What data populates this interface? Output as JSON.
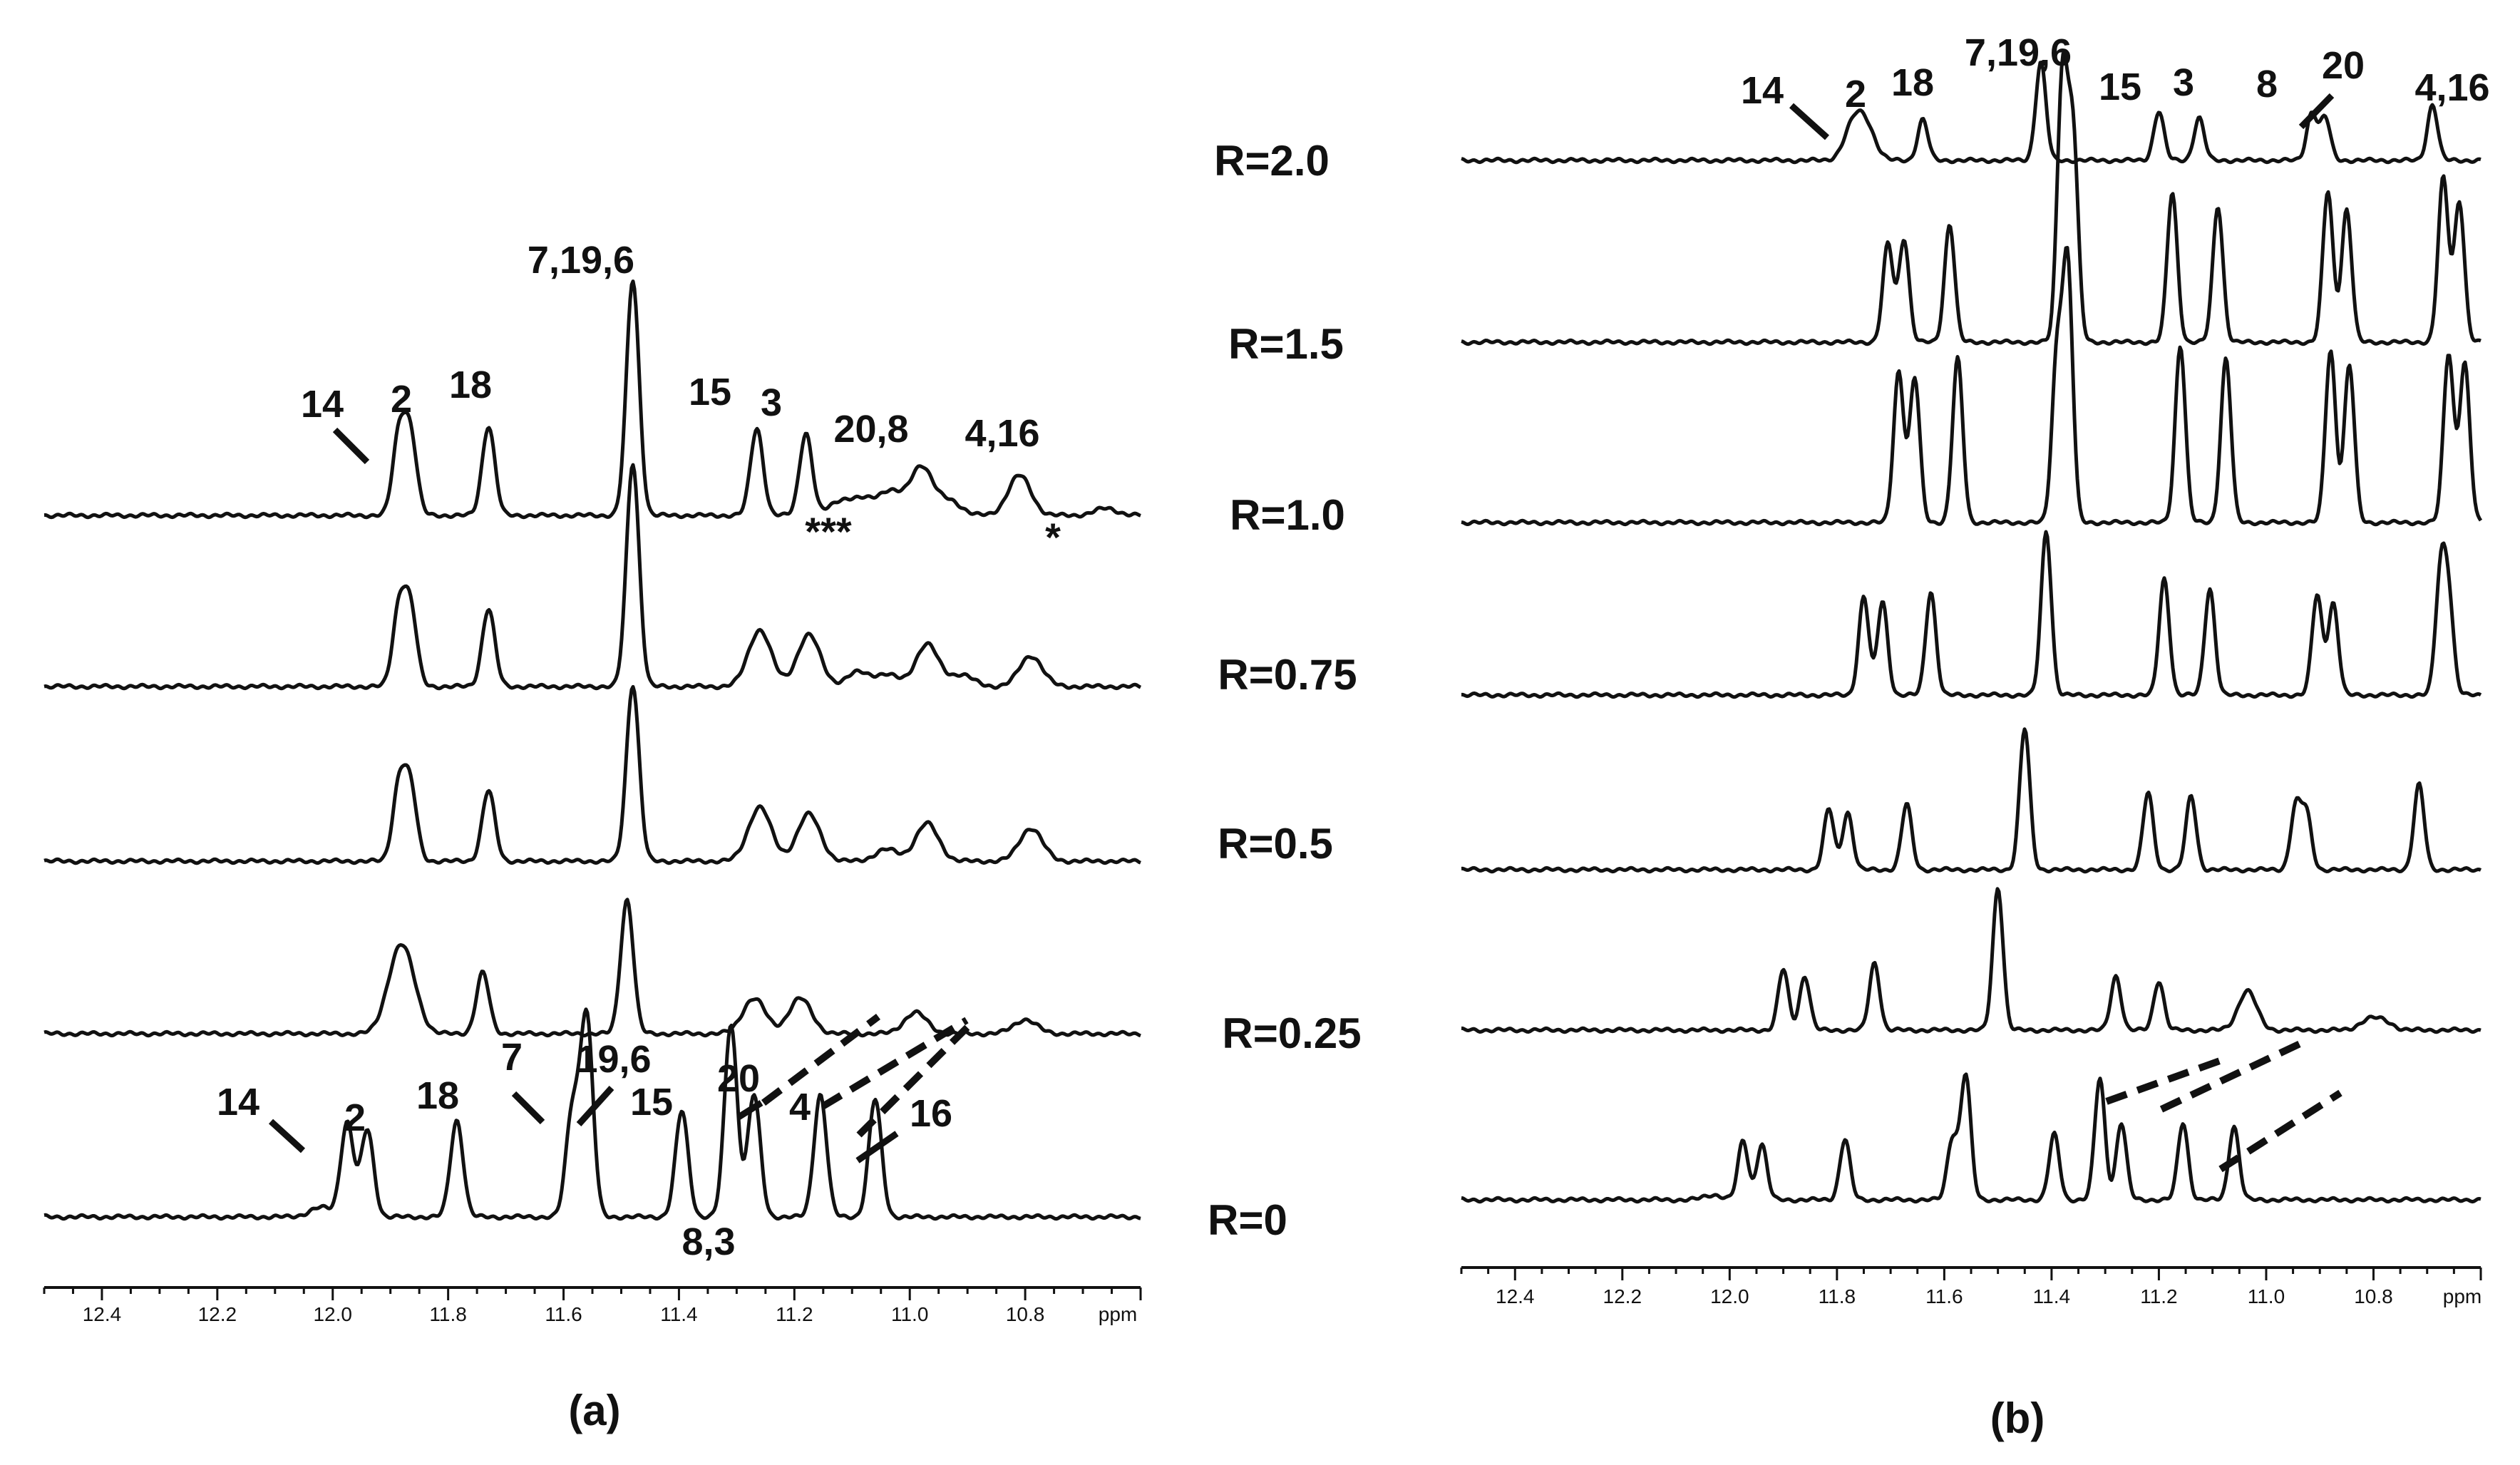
{
  "figure": {
    "panel_a_label": "(a)",
    "panel_b_label": "(b)",
    "ratio_labels": [
      "R=2.0",
      "R=1.5",
      "R=1.0",
      "R=0.75",
      "R=0.5",
      "R=0.25",
      "R=0"
    ],
    "axis_unit": "ppm",
    "asterisk_label": "*"
  },
  "chart_data": [
    {
      "type": "line",
      "panel": "(a)",
      "xlabel": "ppm",
      "xlim": [
        12.5,
        10.6
      ],
      "x_reversed": true,
      "x_ticks": [
        12.4,
        12.2,
        12.0,
        11.8,
        11.6,
        11.4,
        11.2,
        11.0,
        10.8
      ],
      "grid": false,
      "series": [
        {
          "name": "R=1.0",
          "peaks": [
            {
              "ppm": 11.885,
              "height": 0.34
            },
            {
              "ppm": 11.865,
              "height": 0.33
            },
            {
              "ppm": 11.73,
              "height": 0.38
            },
            {
              "ppm": 11.48,
              "height": 1.0
            },
            {
              "ppm": 11.265,
              "height": 0.37
            },
            {
              "ppm": 11.18,
              "height": 0.35
            },
            {
              "ppm": 11.12,
              "height": 0.06
            },
            {
              "ppm": 11.08,
              "height": 0.06
            },
            {
              "ppm": 11.035,
              "height": 0.1
            },
            {
              "ppm": 10.98,
              "height": 0.21
            },
            {
              "ppm": 10.93,
              "height": 0.06
            },
            {
              "ppm": 10.81,
              "height": 0.17
            },
            {
              "ppm": 10.66,
              "height": 0.03
            }
          ]
        },
        {
          "name": "R=0.75",
          "peaks": [
            {
              "ppm": 11.885,
              "height": 0.33
            },
            {
              "ppm": 11.865,
              "height": 0.32
            },
            {
              "ppm": 11.73,
              "height": 0.33
            },
            {
              "ppm": 11.48,
              "height": 0.95
            },
            {
              "ppm": 11.26,
              "height": 0.24
            },
            {
              "ppm": 11.175,
              "height": 0.22
            },
            {
              "ppm": 11.09,
              "height": 0.06
            },
            {
              "ppm": 11.04,
              "height": 0.05
            },
            {
              "ppm": 10.97,
              "height": 0.18
            },
            {
              "ppm": 10.91,
              "height": 0.05
            },
            {
              "ppm": 10.79,
              "height": 0.13
            }
          ]
        },
        {
          "name": "R=0.5",
          "peaks": [
            {
              "ppm": 11.885,
              "height": 0.32
            },
            {
              "ppm": 11.865,
              "height": 0.3
            },
            {
              "ppm": 11.73,
              "height": 0.3
            },
            {
              "ppm": 11.48,
              "height": 0.75
            },
            {
              "ppm": 11.26,
              "height": 0.23
            },
            {
              "ppm": 11.175,
              "height": 0.2
            },
            {
              "ppm": 11.04,
              "height": 0.05
            },
            {
              "ppm": 10.97,
              "height": 0.16
            },
            {
              "ppm": 10.79,
              "height": 0.14
            }
          ]
        },
        {
          "name": "R=0.25",
          "peaks": [
            {
              "ppm": 11.89,
              "height": 0.23
            },
            {
              "ppm": 11.87,
              "height": 0.2
            },
            {
              "ppm": 11.74,
              "height": 0.26
            },
            {
              "ppm": 11.49,
              "height": 0.57
            },
            {
              "ppm": 11.27,
              "height": 0.15
            },
            {
              "ppm": 11.19,
              "height": 0.15
            },
            {
              "ppm": 10.99,
              "height": 0.09
            },
            {
              "ppm": 10.8,
              "height": 0.06
            }
          ]
        },
        {
          "name": "R=0",
          "peaks": [
            {
              "ppm": 12.02,
              "height": 0.04
            },
            {
              "ppm": 11.975,
              "height": 0.4
            },
            {
              "ppm": 11.94,
              "height": 0.37
            },
            {
              "ppm": 11.785,
              "height": 0.41
            },
            {
              "ppm": 11.585,
              "height": 0.44
            },
            {
              "ppm": 11.56,
              "height": 0.85
            },
            {
              "ppm": 11.395,
              "height": 0.45
            },
            {
              "ppm": 11.31,
              "height": 0.82
            },
            {
              "ppm": 11.27,
              "height": 0.52
            },
            {
              "ppm": 11.155,
              "height": 0.52
            },
            {
              "ppm": 11.06,
              "height": 0.5
            }
          ]
        }
      ],
      "annotations": [
        "14",
        "2",
        "18",
        "7,19,6",
        "15",
        "3",
        "20,8",
        "4,16",
        "***",
        "*",
        "7",
        "19,6",
        "20",
        "4",
        "16",
        "8,3"
      ]
    },
    {
      "type": "line",
      "panel": "(b)",
      "xlabel": "ppm",
      "xlim": [
        12.5,
        10.6
      ],
      "x_reversed": true,
      "x_ticks": [
        12.4,
        12.2,
        12.0,
        11.8,
        11.6,
        11.4,
        11.2,
        11.0,
        10.8
      ],
      "grid": false,
      "series": [
        {
          "name": "R=2.0",
          "peaks": [
            {
              "ppm": 11.77,
              "height": 0.2
            },
            {
              "ppm": 11.745,
              "height": 0.19
            },
            {
              "ppm": 11.64,
              "height": 0.25
            },
            {
              "ppm": 11.42,
              "height": 0.6
            },
            {
              "ppm": 11.2,
              "height": 0.3
            },
            {
              "ppm": 11.125,
              "height": 0.26
            },
            {
              "ppm": 10.915,
              "height": 0.29
            },
            {
              "ppm": 10.89,
              "height": 0.26
            },
            {
              "ppm": 10.69,
              "height": 0.34
            }
          ]
        },
        {
          "name": "R=1.5",
          "peaks": [
            {
              "ppm": 11.705,
              "height": 0.6
            },
            {
              "ppm": 11.675,
              "height": 0.63
            },
            {
              "ppm": 11.59,
              "height": 0.72
            },
            {
              "ppm": 11.38,
              "height": 1.6
            },
            {
              "ppm": 11.36,
              "height": 1.25
            },
            {
              "ppm": 11.175,
              "height": 0.91
            },
            {
              "ppm": 11.09,
              "height": 0.83
            },
            {
              "ppm": 10.885,
              "height": 0.92
            },
            {
              "ppm": 10.85,
              "height": 0.81
            },
            {
              "ppm": 10.67,
              "height": 1.0
            },
            {
              "ppm": 10.64,
              "height": 0.86
            }
          ]
        },
        {
          "name": "R=1.0",
          "peaks": [
            {
              "ppm": 11.685,
              "height": 0.92
            },
            {
              "ppm": 11.655,
              "height": 0.88
            },
            {
              "ppm": 11.575,
              "height": 1.0
            },
            {
              "ppm": 11.39,
              "height": 0.99
            },
            {
              "ppm": 11.37,
              "height": 1.55
            },
            {
              "ppm": 11.16,
              "height": 1.08
            },
            {
              "ppm": 11.075,
              "height": 1.0
            },
            {
              "ppm": 10.88,
              "height": 1.05
            },
            {
              "ppm": 10.845,
              "height": 0.96
            },
            {
              "ppm": 10.66,
              "height": 1.03
            },
            {
              "ppm": 10.63,
              "height": 0.97
            }
          ]
        },
        {
          "name": "R=0.75",
          "peaks": [
            {
              "ppm": 11.75,
              "height": 0.6
            },
            {
              "ppm": 11.715,
              "height": 0.57
            },
            {
              "ppm": 11.625,
              "height": 0.63
            },
            {
              "ppm": 11.41,
              "height": 1.0
            },
            {
              "ppm": 11.19,
              "height": 0.71
            },
            {
              "ppm": 11.105,
              "height": 0.65
            },
            {
              "ppm": 10.905,
              "height": 0.61
            },
            {
              "ppm": 10.875,
              "height": 0.56
            },
            {
              "ppm": 10.675,
              "height": 0.7
            },
            {
              "ppm": 10.66,
              "height": 0.55
            }
          ]
        },
        {
          "name": "R=0.5",
          "peaks": [
            {
              "ppm": 11.815,
              "height": 0.37
            },
            {
              "ppm": 11.78,
              "height": 0.35
            },
            {
              "ppm": 11.67,
              "height": 0.4
            },
            {
              "ppm": 11.45,
              "height": 0.86
            },
            {
              "ppm": 11.22,
              "height": 0.47
            },
            {
              "ppm": 11.14,
              "height": 0.45
            },
            {
              "ppm": 10.945,
              "height": 0.38
            },
            {
              "ppm": 10.925,
              "height": 0.34
            },
            {
              "ppm": 10.715,
              "height": 0.52
            }
          ]
        },
        {
          "name": "R=0.25",
          "peaks": [
            {
              "ppm": 11.9,
              "height": 0.37
            },
            {
              "ppm": 11.86,
              "height": 0.33
            },
            {
              "ppm": 11.73,
              "height": 0.41
            },
            {
              "ppm": 11.5,
              "height": 0.87
            },
            {
              "ppm": 11.28,
              "height": 0.33
            },
            {
              "ppm": 11.2,
              "height": 0.3
            },
            {
              "ppm": 11.035,
              "height": 0.24
            },
            {
              "ppm": 10.81,
              "height": 0.06
            },
            {
              "ppm": 10.78,
              "height": 0.05
            }
          ]
        },
        {
          "name": "R=0",
          "peaks": [
            {
              "ppm": 12.03,
              "height": 0.03
            },
            {
              "ppm": 11.975,
              "height": 0.36
            },
            {
              "ppm": 11.94,
              "height": 0.34
            },
            {
              "ppm": 11.785,
              "height": 0.37
            },
            {
              "ppm": 11.585,
              "height": 0.37
            },
            {
              "ppm": 11.56,
              "height": 0.76
            },
            {
              "ppm": 11.395,
              "height": 0.4
            },
            {
              "ppm": 11.31,
              "height": 0.74
            },
            {
              "ppm": 11.27,
              "height": 0.47
            },
            {
              "ppm": 11.155,
              "height": 0.47
            },
            {
              "ppm": 11.06,
              "height": 0.45
            }
          ]
        }
      ],
      "annotations": [
        "14",
        "2",
        "18",
        "7,19,6",
        "15",
        "3",
        "8",
        "20",
        "4,16"
      ]
    }
  ]
}
